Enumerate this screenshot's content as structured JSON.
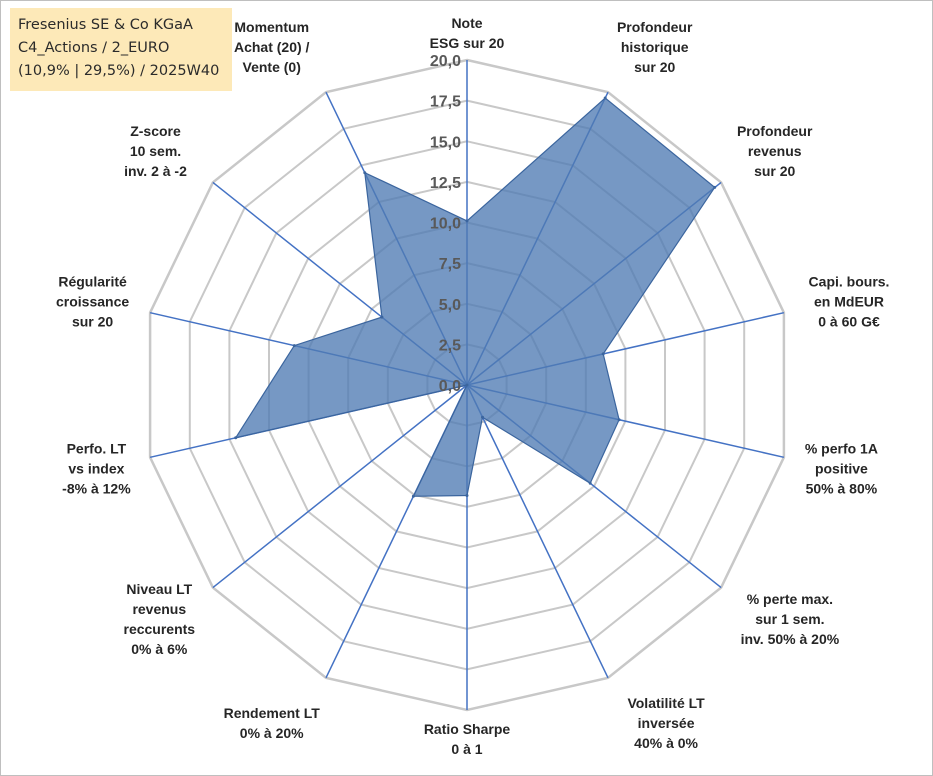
{
  "info_box": {
    "line1": "Fresenius SE & Co KGaA",
    "line2": "C4_Actions / 2_EURO",
    "line3": "(10,9% | 29,5%) / 2025W40"
  },
  "chart_data": {
    "type": "radar",
    "title": "",
    "range": [
      0,
      20
    ],
    "ticks": [
      "0,0",
      "2,5",
      "5,0",
      "7,5",
      "10,0",
      "12,5",
      "15,0",
      "17,5",
      "20,0"
    ],
    "axes": [
      {
        "lines": [
          "Note",
          "ESG sur 20"
        ]
      },
      {
        "lines": [
          "Profondeur",
          "historique",
          "sur 20"
        ]
      },
      {
        "lines": [
          "Profondeur",
          "revenus",
          "sur 20"
        ]
      },
      {
        "lines": [
          "Capi. bours.",
          "en MdEUR",
          "0 à 60 G€"
        ]
      },
      {
        "lines": [
          "% perfo 1A",
          "positive",
          "50% à 80%"
        ]
      },
      {
        "lines": [
          "% perte max.",
          "sur 1 sem.",
          "inv. 50% à 20%"
        ]
      },
      {
        "lines": [
          "Volatilité LT",
          "inversée",
          "40% à 0%"
        ]
      },
      {
        "lines": [
          "Ratio Sharpe",
          "0 à 1"
        ]
      },
      {
        "lines": [
          "Rendement LT",
          "0% à 20%"
        ]
      },
      {
        "lines": [
          "Niveau LT",
          "revenus",
          "reccurents",
          "0% à 6%"
        ]
      },
      {
        "lines": [
          "Perfo. LT",
          "vs index",
          "-8% à 12%"
        ]
      },
      {
        "lines": [
          "Régularité",
          "croissance",
          "sur 20"
        ]
      },
      {
        "lines": [
          "Z-score",
          "10 sem.",
          "inv. 2 à -2"
        ]
      },
      {
        "lines": [
          "Momentum",
          "Achat (20) /",
          "Vente (0)"
        ]
      }
    ],
    "series": [
      {
        "name": "Fresenius SE & Co KGaA",
        "values": [
          10.1,
          19.6,
          19.5,
          8.6,
          9.6,
          9.7,
          2.2,
          6.8,
          7.6,
          0.0,
          14.6,
          10.9,
          6.7,
          14.5
        ],
        "color": "#4f7bb3"
      }
    ]
  }
}
